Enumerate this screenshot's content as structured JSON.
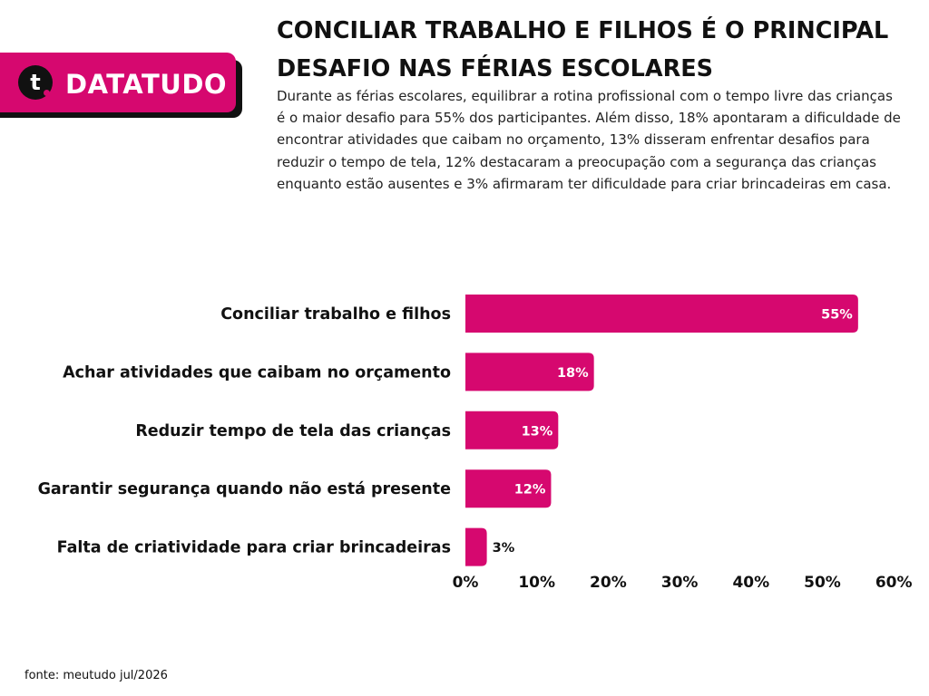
{
  "brand": {
    "mark": "t",
    "name": "DATATUDO",
    "color": "#d6086f"
  },
  "title": "CONCILIAR TRABALHO E FILHOS É O PRINCIPAL DESAFIO NAS FÉRIAS ESCOLARES",
  "subtitle": "Durante as férias escolares, equilibrar a rotina profissional com o tempo livre das crianças é o maior desafio para 55% dos participantes. Além disso, 18% apontaram a dificuldade de encontrar atividades que caibam no orçamento, 13% disseram enfrentar desafios para reduzir o tempo de tela, 12% destacaram a preocupação com a segurança das crianças enquanto estão ausentes e 3% afirmaram ter dificuldade para criar brincadeiras em casa.",
  "source": "fonte: meutudo jul/2026",
  "chart_data": {
    "type": "bar",
    "orientation": "horizontal",
    "categories": [
      "Conciliar trabalho e filhos",
      "Achar atividades que caibam no orçamento",
      "Reduzir tempo de tela das crianças",
      "Garantir segurança quando não está presente",
      "Falta de criatividade para criar brincadeiras"
    ],
    "values": [
      55,
      18,
      13,
      12,
      3
    ],
    "value_labels": [
      "55%",
      "18%",
      "13%",
      "12%",
      "3%"
    ],
    "xlim": [
      0,
      60
    ],
    "xticks": [
      "0%",
      "10%",
      "20%",
      "30%",
      "40%",
      "50%",
      "60%"
    ],
    "grid": false,
    "legend": "none",
    "bar_color": "#d6086f"
  }
}
